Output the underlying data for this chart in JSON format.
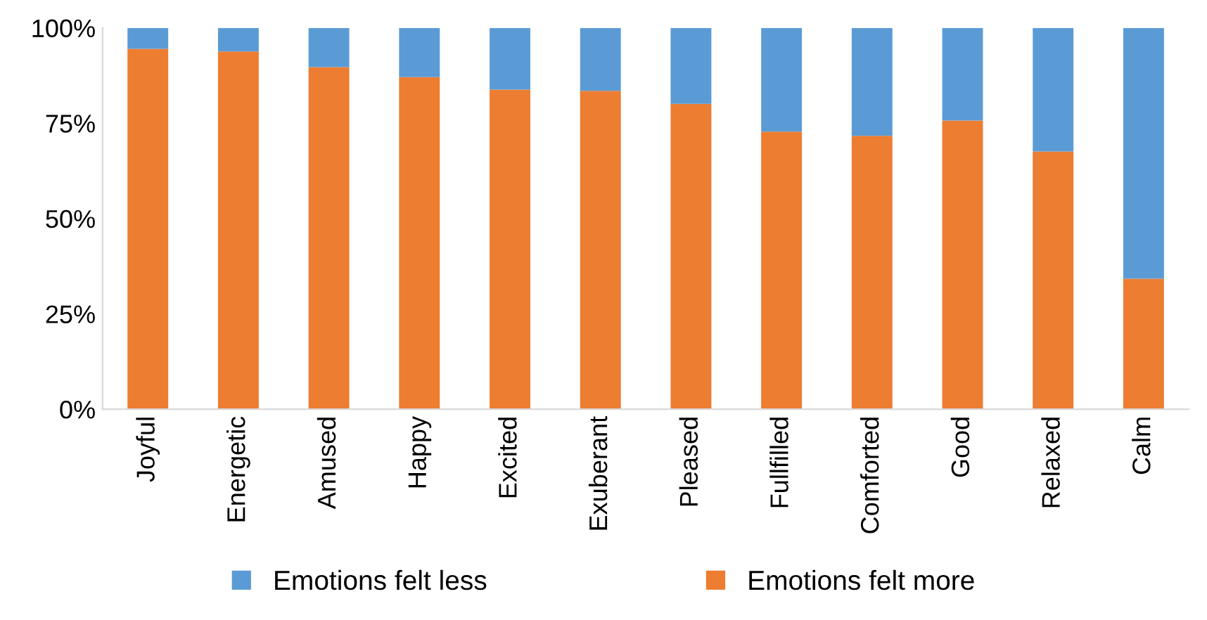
{
  "chart_data": {
    "type": "bar",
    "stacked": true,
    "categories": [
      "Joyful",
      "Energetic",
      "Amused",
      "Happy",
      "Excited",
      "Exuberant",
      "Pleased",
      "Fullfilled",
      "Comforted",
      "Good",
      "Relaxed",
      "Calm"
    ],
    "series": [
      {
        "name": "Emotions felt more",
        "color": "#ed7d31",
        "values": [
          94.5,
          93.8,
          89.7,
          87.1,
          83.8,
          83.5,
          80.1,
          72.8,
          71.7,
          75.7,
          67.6,
          34.2
        ]
      },
      {
        "name": "Emotions felt less",
        "color": "#5b9bd5",
        "values": [
          5.5,
          6.2,
          10.3,
          12.9,
          16.2,
          16.5,
          19.9,
          27.2,
          28.3,
          24.3,
          32.4,
          65.8
        ]
      }
    ],
    "ylim": [
      0,
      100
    ],
    "yticks": [
      {
        "value": 0,
        "label": "0%"
      },
      {
        "value": 25,
        "label": "25%"
      },
      {
        "value": 50,
        "label": "50%"
      },
      {
        "value": 75,
        "label": "75%"
      },
      {
        "value": 100,
        "label": "100%"
      }
    ],
    "legend": "bottom",
    "grid": false
  }
}
